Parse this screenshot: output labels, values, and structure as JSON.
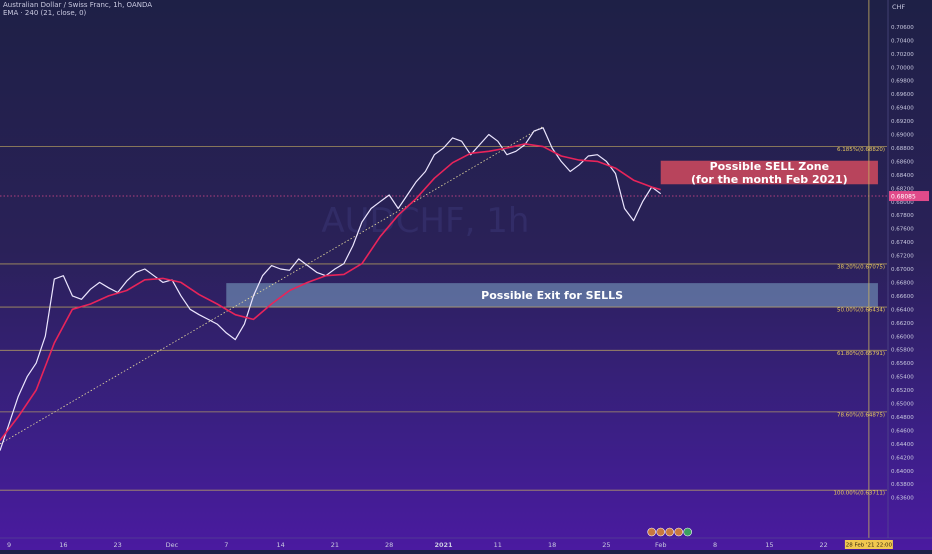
{
  "header": {
    "symbol_line": "Australian Dollar / Swiss Franc, 1h, OANDA",
    "indicator_line": "EMA · 240 (21, close, 0)"
  },
  "chart_data": {
    "type": "line",
    "watermark": "AUDCHF, 1h",
    "currency": "CHF",
    "price_axis": {
      "range": [
        0.63,
        0.71
      ],
      "ticks": [
        "0.70600",
        "0.70400",
        "0.70200",
        "0.70000",
        "0.69800",
        "0.69600",
        "0.69400",
        "0.69200",
        "0.69000",
        "0.68800",
        "0.68600",
        "0.68400",
        "0.68200",
        "0.68000",
        "0.67800",
        "0.67600",
        "0.67400",
        "0.67200",
        "0.67000",
        "0.66800",
        "0.66600",
        "0.66400",
        "0.66200",
        "0.66000",
        "0.65800",
        "0.65600",
        "0.65400",
        "0.65200",
        "0.65000",
        "0.64800",
        "0.64600",
        "0.64400",
        "0.64200",
        "0.64000",
        "0.63800",
        "0.63600"
      ],
      "ticks_value": [
        0.706,
        0.704,
        0.702,
        0.7,
        0.698,
        0.696,
        0.694,
        0.692,
        0.69,
        0.688,
        0.686,
        0.684,
        0.682,
        0.68,
        0.678,
        0.676,
        0.674,
        0.672,
        0.67,
        0.668,
        0.666,
        0.664,
        0.662,
        0.66,
        0.658,
        0.656,
        0.654,
        0.652,
        0.65,
        0.648,
        0.646,
        0.644,
        0.642,
        0.64,
        0.638,
        0.636
      ],
      "extra_labels": [
        "0.63600"
      ],
      "current_price": "0.68085",
      "current_price_value": 0.68085
    },
    "time_axis": {
      "labels": [
        "9",
        "16",
        "23",
        "Dec",
        "7",
        "14",
        "21",
        "28",
        "2021",
        "11",
        "18",
        "25",
        "Feb",
        "8",
        "15",
        "22"
      ],
      "label_index": [
        1,
        7,
        13,
        19,
        25,
        31,
        37,
        43,
        49,
        55,
        61,
        67,
        73,
        79,
        85,
        91
      ],
      "cursor_label": "28 Feb '21  22:00",
      "cursor_index": 96
    },
    "fib_levels": [
      {
        "label": "6.185%(0.68820)",
        "value": 0.6882
      },
      {
        "label": "38.20%(0.67075)",
        "value": 0.67075
      },
      {
        "label": "50.00%(0.66434)",
        "value": 0.66434
      },
      {
        "label": "61.80%(0.65791)",
        "value": 0.65791
      },
      {
        "label": "78.60%(0.64875)",
        "value": 0.64875
      },
      {
        "label": "100.00%(0.63711)",
        "value": 0.63711
      }
    ],
    "zones": [
      {
        "label": "Possible SELL Zone\n(for the month Feb 2021)",
        "top": 0.6861,
        "bottom": 0.6826,
        "from_index": 73,
        "to_index": 97,
        "color": "#d24a5e"
      },
      {
        "label": "Possible Exit for SELLS",
        "top": 0.6679,
        "bottom": 0.6643,
        "from_index": 25,
        "to_index": 97,
        "color": "#7fa8c8"
      }
    ],
    "trendline": {
      "from": [
        0,
        0.644
      ],
      "to": [
        60,
        0.6912
      ]
    },
    "price_index": [
      0,
      1,
      2,
      3,
      4,
      5,
      6,
      7,
      8,
      9,
      10,
      11,
      12,
      13,
      14,
      15,
      16,
      17,
      18,
      19,
      20,
      21,
      22,
      23,
      24,
      25,
      26,
      27,
      28,
      29,
      30,
      31,
      32,
      33,
      34,
      35,
      36,
      37,
      38,
      39,
      40,
      41,
      42,
      43,
      44,
      45,
      46,
      47,
      48,
      49,
      50,
      51,
      52,
      53,
      54,
      55,
      56,
      57,
      58,
      59,
      60,
      61,
      62,
      63,
      64,
      65,
      66,
      67,
      68,
      69,
      70,
      71,
      72,
      73
    ],
    "price": [
      0.643,
      0.647,
      0.651,
      0.654,
      0.656,
      0.66,
      0.6685,
      0.669,
      0.666,
      0.6655,
      0.667,
      0.668,
      0.6672,
      0.6665,
      0.6682,
      0.6695,
      0.67,
      0.669,
      0.668,
      0.6684,
      0.666,
      0.664,
      0.6632,
      0.6625,
      0.6618,
      0.6605,
      0.6595,
      0.6618,
      0.666,
      0.669,
      0.6705,
      0.67,
      0.6698,
      0.6715,
      0.6705,
      0.6695,
      0.669,
      0.67,
      0.6708,
      0.6735,
      0.677,
      0.679,
      0.68,
      0.681,
      0.679,
      0.681,
      0.683,
      0.6845,
      0.687,
      0.688,
      0.6895,
      0.689,
      0.687,
      0.6885,
      0.69,
      0.689,
      0.687,
      0.6875,
      0.6885,
      0.6905,
      0.691,
      0.688,
      0.686,
      0.6845,
      0.6855,
      0.6868,
      0.687,
      0.686,
      0.6842,
      0.679,
      0.6772,
      0.68,
      0.6822,
      0.6812
    ],
    "ema_index": [
      0,
      2,
      4,
      6,
      8,
      10,
      12,
      14,
      16,
      18,
      20,
      22,
      24,
      26,
      28,
      30,
      32,
      34,
      36,
      38,
      40,
      42,
      44,
      46,
      48,
      50,
      52,
      54,
      56,
      58,
      60,
      62,
      64,
      66,
      68,
      70,
      72,
      73
    ],
    "ema": [
      0.6445,
      0.648,
      0.652,
      0.659,
      0.664,
      0.6648,
      0.666,
      0.6668,
      0.6684,
      0.6686,
      0.668,
      0.6662,
      0.6648,
      0.6632,
      0.6625,
      0.6648,
      0.6668,
      0.668,
      0.669,
      0.6692,
      0.6708,
      0.6748,
      0.678,
      0.6805,
      0.6835,
      0.6858,
      0.6872,
      0.6875,
      0.688,
      0.6886,
      0.6882,
      0.6868,
      0.6862,
      0.686,
      0.685,
      0.6832,
      0.6822,
      0.6818
    ],
    "colors": {
      "price": "#ece6ff",
      "ema": "#e8245a",
      "fib": "#c8b060",
      "trend": "#e6dca0",
      "current": "#e04a8a"
    }
  }
}
